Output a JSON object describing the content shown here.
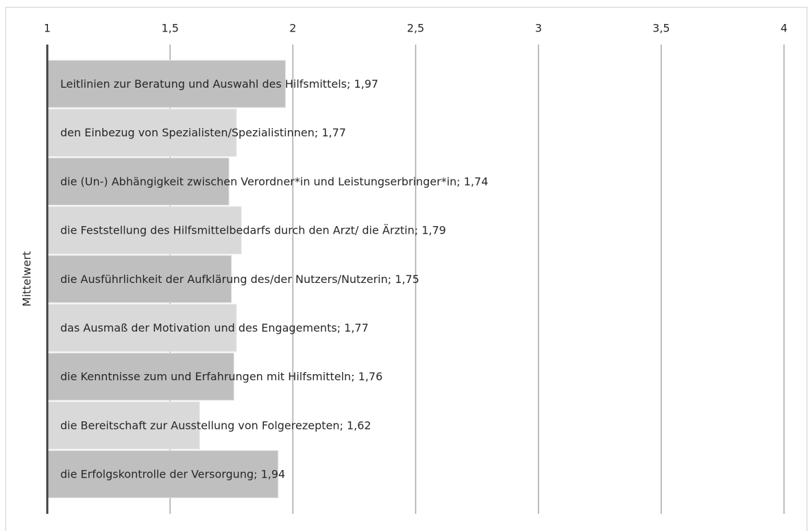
{
  "chart_data": {
    "type": "barh",
    "ylabel": "Mittelwert",
    "values": [
      1.97,
      1.77,
      1.74,
      1.79,
      1.75,
      1.77,
      1.76,
      1.62,
      1.94
    ],
    "value_labels": [
      "Leitlinien zur Beratung und Auswahl des Hilfsmittels; 1,97",
      "den Einbezug von Spezialisten/Spezialistinnen; 1,77",
      "die (Un-) Abhängigkeit zwischen Verordner*in und Leistungserbringer*in; 1,74",
      "die Feststellung des Hilfsmittelbedarfs durch den Arzt/ die Ärztin; 1,79",
      "die Ausführlichkeit der Aufklärung des/der Nutzers/Nutzerin; 1,75",
      "das Ausmaß der Motivation und des Engagements; 1,77",
      "die Kenntnisse zum und Erfahrungen mit Hilfsmitteln; 1,76",
      "die Bereitschaft zur Ausstellung von Folgerezepten; 1,62",
      "die Erfolgskontrolle der Versorgung; 1,94"
    ],
    "colors": [
      "#bfbfbf",
      "#d9d9d9",
      "#bfbfbf",
      "#d9d9d9",
      "#bfbfbf",
      "#d9d9d9",
      "#bfbfbf",
      "#d9d9d9",
      "#bfbfbf"
    ],
    "xlim": [
      1,
      4
    ],
    "xticks": [
      1,
      {
        "value": 1.5,
        "label": "1,5"
      },
      2,
      {
        "value": 2.5,
        "label": "2,5"
      },
      3,
      {
        "value": 3.5,
        "label": "3,5"
      },
      4
    ],
    "grid": true
  }
}
